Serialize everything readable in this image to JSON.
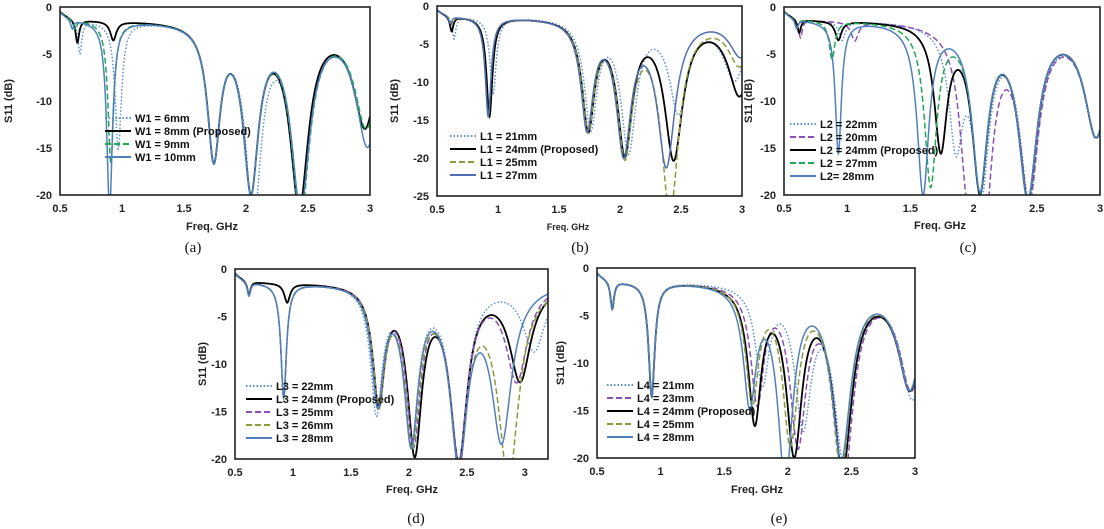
{
  "chart_data": [
    {
      "panel": "(a)",
      "type": "line",
      "xlabel": "Freq. GHz",
      "ylabel": "S11 (dB)",
      "xlim": [
        0.5,
        3
      ],
      "ylim": [
        -20,
        0
      ],
      "xticks": [
        "0.5",
        "1",
        "1.5",
        "2",
        "2.5",
        "3"
      ],
      "yticks": [
        "0",
        "-5",
        "-10",
        "-15",
        "-20"
      ],
      "legend_position": "bottom-center",
      "series": [
        {
          "name": "W1 = 6mm",
          "color": "#5b8fd6",
          "dash": "dotted",
          "resonances": [
            [
              0.66,
              -3.5
            ],
            [
              0.97,
              -13.5
            ],
            [
              1.74,
              -14
            ],
            [
              2.06,
              -20
            ],
            [
              2.44,
              -19
            ],
            [
              2.96,
              -11
            ]
          ]
        },
        {
          "name": "W1 = 8mm (Proposed)",
          "color": "#000000",
          "dash": "solid",
          "resonances": [
            [
              0.64,
              -2.5
            ],
            [
              0.93,
              -2
            ],
            [
              1.74,
              -14
            ],
            [
              2.04,
              -17
            ],
            [
              2.43,
              -19
            ],
            [
              2.96,
              -11
            ]
          ]
        },
        {
          "name": "W1 = 9mm",
          "color": "#1fa84f",
          "dash": "dashed",
          "resonances": [
            [
              0.62,
              -1
            ],
            [
              0.91,
              -15
            ],
            [
              1.74,
              -14
            ],
            [
              2.04,
              -17
            ],
            [
              2.44,
              -20
            ],
            [
              2.97,
              -11
            ]
          ]
        },
        {
          "name": "W1 = 10mm",
          "color": "#4f80bd",
          "dash": "solid",
          "resonances": [
            [
              0.6,
              -1
            ],
            [
              0.9,
              -20
            ],
            [
              1.74,
              -14
            ],
            [
              2.04,
              -17
            ],
            [
              2.44,
              -19
            ],
            [
              2.98,
              -13
            ]
          ]
        }
      ]
    },
    {
      "panel": "(b)",
      "type": "line",
      "xlabel": "Freq. GHz",
      "ylabel": "S11 (dB)",
      "xlim": [
        0.5,
        3
      ],
      "ylim": [
        -25,
        0
      ],
      "xticks": [
        "0.5",
        "1",
        "1.5",
        "2",
        "2.5",
        "3"
      ],
      "yticks": [
        "0",
        "-5",
        "-10",
        "-15",
        "-20",
        "-25"
      ],
      "legend_position": "bottom-left",
      "series": [
        {
          "name": "L1 = 21mm",
          "color": "#5b8fd6",
          "dash": "dotted",
          "resonances": [
            [
              0.64,
              -3
            ],
            [
              0.96,
              -10
            ],
            [
              1.76,
              -14
            ],
            [
              2.07,
              -17
            ],
            [
              2.48,
              -12
            ],
            [
              2.94,
              -8
            ]
          ]
        },
        {
          "name": "L1 = 24mm (Proposed)",
          "color": "#000000",
          "dash": "solid",
          "resonances": [
            [
              0.62,
              -2
            ],
            [
              0.93,
              -13
            ],
            [
              1.74,
              -14
            ],
            [
              2.04,
              -17
            ],
            [
              2.44,
              -18
            ],
            [
              2.98,
              -10
            ]
          ]
        },
        {
          "name": "L1 = 25mm",
          "color": "#8c9a3c",
          "dash": "dashed",
          "resonances": [
            [
              0.62,
              -1
            ],
            [
              0.92,
              -13
            ],
            [
              1.74,
              -14
            ],
            [
              2.04,
              -17
            ],
            [
              2.41,
              -25
            ],
            [
              2.98,
              -6
            ]
          ]
        },
        {
          "name": "L1 = 27mm",
          "color": "#4f6fb0",
          "dash": "solid",
          "resonances": [
            [
              0.61,
              -1
            ],
            [
              0.92,
              -13
            ],
            [
              1.73,
              -14
            ],
            [
              2.03,
              -17
            ],
            [
              2.38,
              -19
            ],
            [
              2.99,
              -5
            ]
          ]
        }
      ]
    },
    {
      "panel": "(c)",
      "type": "line",
      "xlabel": "Freq. GHz",
      "ylabel": "S11 (dB)",
      "xlim": [
        0.5,
        3
      ],
      "ylim": [
        -20,
        0
      ],
      "xticks": [
        "0.5",
        "1",
        "1.5",
        "2",
        "2.5",
        "3"
      ],
      "yticks": [
        "0",
        "-5",
        "-10",
        "-15",
        "-20"
      ],
      "legend_position": "bottom-left",
      "series": [
        {
          "name": "L2 = 22mm",
          "color": "#5b8fd6",
          "dash": "dotted",
          "resonances": [
            [
              0.62,
              -1.5
            ],
            [
              0.96,
              -2
            ],
            [
              1.86,
              -12
            ],
            [
              2.06,
              -17
            ],
            [
              2.44,
              -18
            ],
            [
              2.97,
              -12
            ]
          ]
        },
        {
          "name": "L2 = 20mm",
          "color": "#8a4fb8",
          "dash": "dashed",
          "resonances": [
            [
              0.63,
              -2
            ],
            [
              1.06,
              -2
            ],
            [
              1.95,
              -14
            ],
            [
              2.08,
              -20
            ],
            [
              2.44,
              -18
            ],
            [
              2.97,
              -12
            ]
          ]
        },
        {
          "name": "L2 = 24mm (Proposed)",
          "color": "#000000",
          "dash": "solid",
          "resonances": [
            [
              0.62,
              -1.5
            ],
            [
              0.93,
              -2
            ],
            [
              1.74,
              -13
            ],
            [
              2.05,
              -17
            ],
            [
              2.43,
              -18
            ],
            [
              2.97,
              -12
            ]
          ]
        },
        {
          "name": "L2 = 27mm",
          "color": "#1fa84f",
          "dash": "dashed",
          "resonances": [
            [
              0.6,
              -1
            ],
            [
              0.88,
              -4
            ],
            [
              1.66,
              -17
            ],
            [
              2.05,
              -17
            ],
            [
              2.43,
              -18
            ],
            [
              2.97,
              -12
            ]
          ]
        },
        {
          "name": "L2= 28mm",
          "color": "#4f80bd",
          "dash": "solid",
          "resonances": [
            [
              0.6,
              -1
            ],
            [
              0.93,
              -14
            ],
            [
              1.6,
              -18
            ],
            [
              2.05,
              -17
            ],
            [
              2.43,
              -18
            ],
            [
              2.97,
              -12
            ]
          ]
        }
      ]
    },
    {
      "panel": "(d)",
      "type": "line",
      "xlabel": "Freq. GHz",
      "ylabel": "S11 (dB)",
      "xlim": [
        0.5,
        3.2
      ],
      "ylim": [
        -20,
        0
      ],
      "xticks": [
        "0.5",
        "1",
        "1.5",
        "2",
        "2.5",
        "3"
      ],
      "yticks": [
        "0",
        "-5",
        "-10",
        "-15",
        "-20"
      ],
      "legend_position": "bottom-left",
      "series": [
        {
          "name": "L3 = 22mm",
          "color": "#5b8fd6",
          "dash": "dotted",
          "resonances": [
            [
              0.62,
              -1.5
            ],
            [
              0.92,
              -12
            ],
            [
              1.72,
              -13
            ],
            [
              2.02,
              -16
            ],
            [
              2.43,
              -18
            ],
            [
              3.08,
              -7
            ]
          ]
        },
        {
          "name": "L3 = 24mm (Proposed)",
          "color": "#000000",
          "dash": "solid",
          "resonances": [
            [
              0.62,
              -1.5
            ],
            [
              0.95,
              -2
            ],
            [
              1.74,
              -12
            ],
            [
              2.05,
              -17
            ],
            [
              2.43,
              -18
            ],
            [
              2.96,
              -10
            ]
          ]
        },
        {
          "name": "L3 = 25mm",
          "color": "#8a4fb8",
          "dash": "dashed",
          "resonances": [
            [
              0.62,
              -1.5
            ],
            [
              0.92,
              -12
            ],
            [
              1.74,
              -12
            ],
            [
              2.04,
              -16
            ],
            [
              2.43,
              -18
            ],
            [
              2.93,
              -10
            ]
          ]
        },
        {
          "name": "L3 = 26mm",
          "color": "#8c9a3c",
          "dash": "dashed",
          "resonances": [
            [
              0.62,
              -1.5
            ],
            [
              0.92,
              -12
            ],
            [
              1.74,
              -12
            ],
            [
              2.03,
              -16
            ],
            [
              2.43,
              -18
            ],
            [
              2.86,
              -20
            ]
          ]
        },
        {
          "name": "L3 = 28mm",
          "color": "#4f80bd",
          "dash": "solid",
          "resonances": [
            [
              0.62,
              -1.5
            ],
            [
              0.92,
              -12
            ],
            [
              1.73,
              -12
            ],
            [
              2.02,
              -16
            ],
            [
              2.43,
              -18
            ],
            [
              2.8,
              -16
            ]
          ]
        }
      ]
    },
    {
      "panel": "(e)",
      "type": "line",
      "xlabel": "Freq. GHz",
      "ylabel": "S11 (dB)",
      "xlim": [
        0.5,
        3
      ],
      "ylim": [
        -20,
        0
      ],
      "xticks": [
        "0.5",
        "1",
        "1.5",
        "2",
        "2.5",
        "3"
      ],
      "yticks": [
        "0",
        "-5",
        "-10",
        "-15",
        "-20"
      ],
      "legend_position": "bottom-left",
      "series": [
        {
          "name": "L4 = 21mm",
          "color": "#5b8fd6",
          "dash": "dotted",
          "resonances": [
            [
              0.62,
              -3
            ],
            [
              0.93,
              -12
            ],
            [
              1.8,
              -10
            ],
            [
              2.12,
              -14
            ],
            [
              2.44,
              -18
            ],
            [
              2.98,
              -12
            ]
          ]
        },
        {
          "name": "L4 = 23mm",
          "color": "#8a4fb8",
          "dash": "dashed",
          "resonances": [
            [
              0.62,
              -3
            ],
            [
              0.93,
              -12
            ],
            [
              1.76,
              -12
            ],
            [
              2.08,
              -16
            ],
            [
              2.44,
              -20
            ],
            [
              2.97,
              -11
            ]
          ]
        },
        {
          "name": "L4 = 24mm (Proposed)",
          "color": "#000000",
          "dash": "solid",
          "resonances": [
            [
              0.62,
              -3
            ],
            [
              0.93,
              -12
            ],
            [
              1.74,
              -14
            ],
            [
              2.05,
              -17
            ],
            [
              2.43,
              -19
            ],
            [
              2.96,
              -11
            ]
          ]
        },
        {
          "name": "L4 = 25mm",
          "color": "#8c9a3c",
          "dash": "dashed",
          "resonances": [
            [
              0.62,
              -3
            ],
            [
              0.93,
              -12
            ],
            [
              1.72,
              -12
            ],
            [
              2.02,
              -16
            ],
            [
              2.42,
              -19
            ],
            [
              2.96,
              -11
            ]
          ]
        },
        {
          "name": "L4 = 28mm",
          "color": "#4f80bd",
          "dash": "solid",
          "resonances": [
            [
              0.62,
              -3
            ],
            [
              0.93,
              -12
            ],
            [
              1.7,
              -12
            ],
            [
              1.98,
              -20
            ],
            [
              2.42,
              -18
            ],
            [
              2.96,
              -11
            ]
          ]
        }
      ]
    }
  ]
}
